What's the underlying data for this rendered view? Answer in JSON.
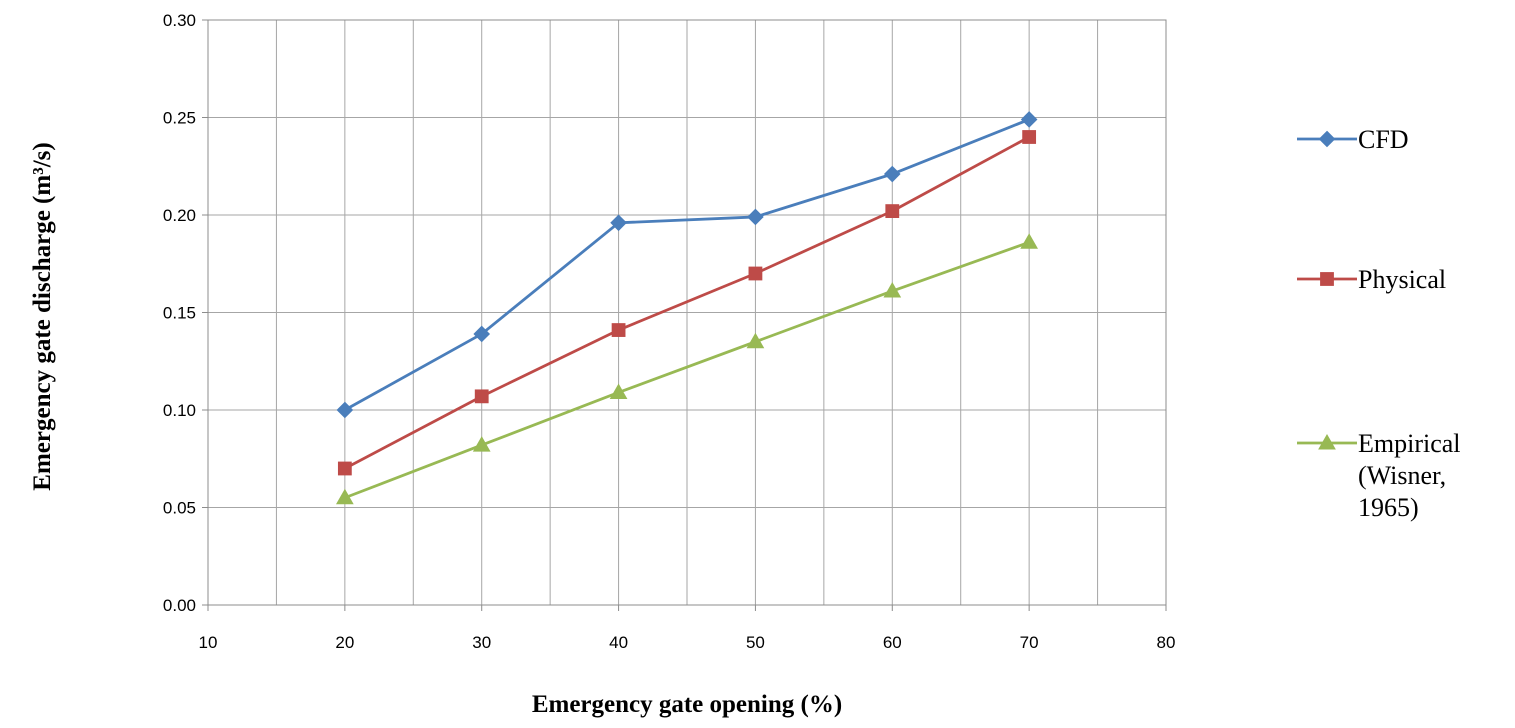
{
  "chart_data": {
    "type": "line",
    "xlabel": "Emergency gate opening (%)",
    "ylabel": "Emergency gate discharge (m³/s)",
    "x": [
      20,
      30,
      40,
      50,
      60,
      70
    ],
    "series": [
      {
        "name": "CFD",
        "values": [
          0.1,
          0.139,
          0.196,
          0.199,
          0.221,
          0.249
        ],
        "color": "#4a7ebb",
        "marker": "diamond"
      },
      {
        "name": "Physical",
        "values": [
          0.07,
          0.107,
          0.141,
          0.17,
          0.202,
          0.24
        ],
        "color": "#be4b48",
        "marker": "square"
      },
      {
        "name": "Empirical (Wisner, 1965)",
        "legend_lines": [
          "Empirical",
          "(Wisner,",
          "1965)"
        ],
        "values": [
          0.055,
          0.082,
          0.109,
          0.135,
          0.161,
          0.186
        ],
        "color": "#98b954",
        "marker": "triangle"
      }
    ],
    "xlim": [
      10,
      80
    ],
    "ylim": [
      0,
      0.3
    ],
    "xticks": [
      "10",
      "20",
      "30",
      "40",
      "50",
      "60",
      "70",
      "80"
    ],
    "yticks": [
      "0.00",
      "0.05",
      "0.10",
      "0.15",
      "0.20",
      "0.25",
      "0.30"
    ],
    "x_minor_step": 5,
    "grid": true,
    "legend_position": "right"
  }
}
